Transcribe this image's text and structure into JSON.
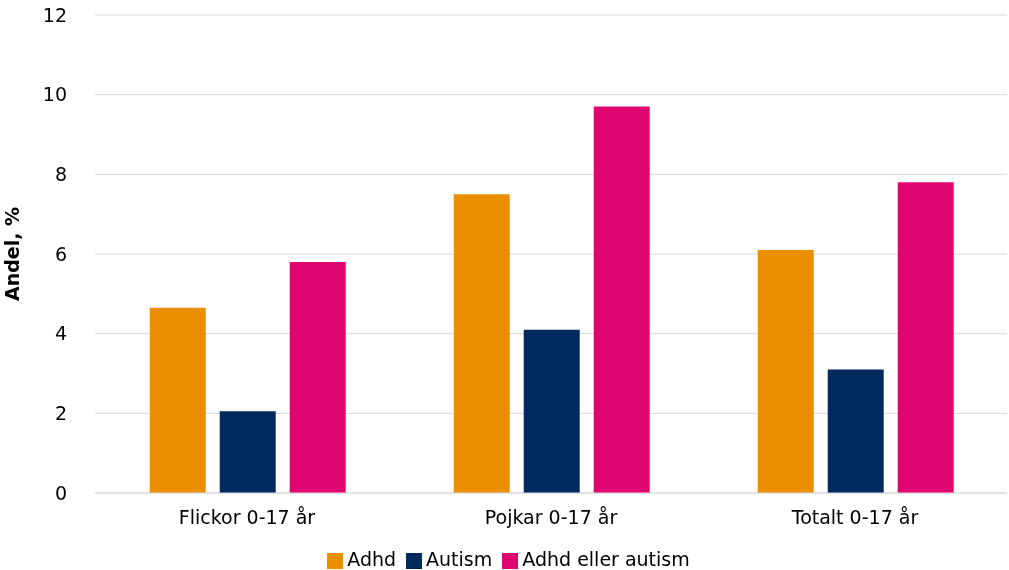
{
  "chart_data": {
    "type": "bar",
    "ylabel": "Andel, %",
    "categories": [
      "Flickor 0-17 år",
      "Pojkar 0-17 år",
      "Totalt 0-17 år"
    ],
    "series": [
      {
        "name": "Adhd",
        "color": "#ea8f00",
        "values": [
          4.65,
          7.5,
          6.1
        ]
      },
      {
        "name": "Autism",
        "color": "#002b5c",
        "values": [
          2.05,
          4.1,
          3.1
        ]
      },
      {
        "name": "Adhd eller autism",
        "color": "#e0066f",
        "values": [
          5.8,
          9.7,
          7.8
        ]
      }
    ],
    "ylim": [
      0,
      12
    ],
    "yticks": [
      0,
      2,
      4,
      6,
      8,
      10,
      12
    ],
    "grid": "y",
    "legend": "bottom"
  }
}
